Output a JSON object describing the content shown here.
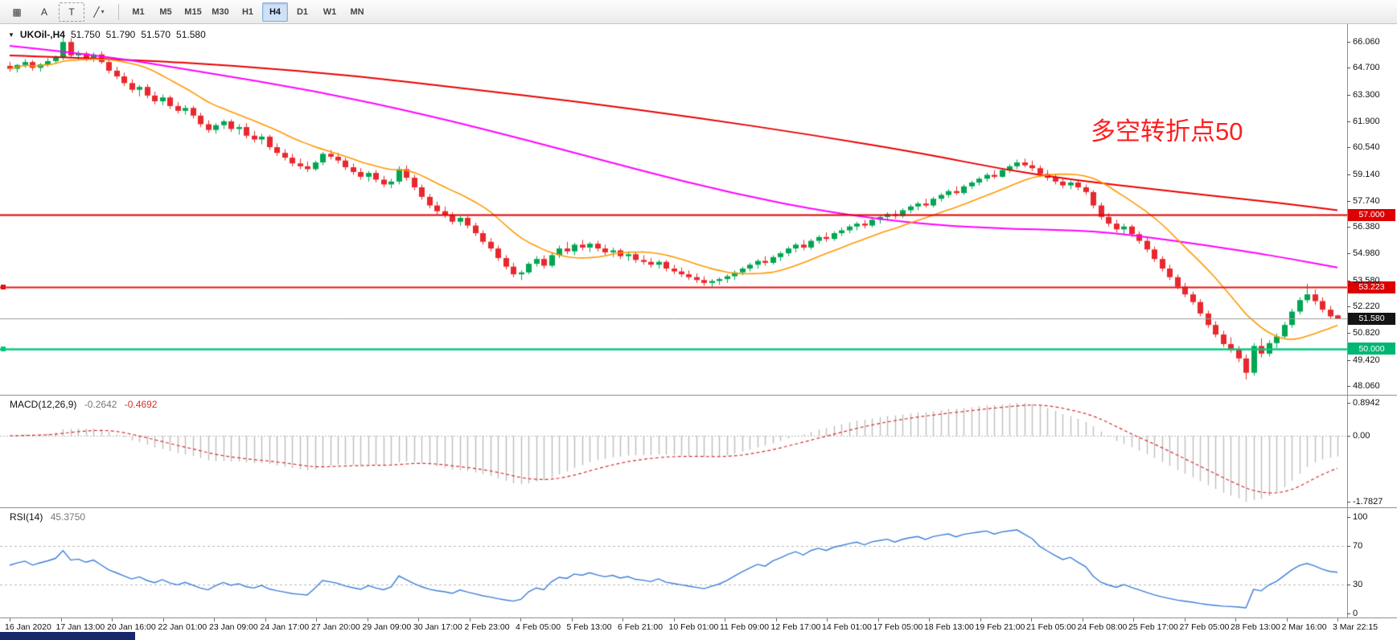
{
  "toolbar": {
    "tools": [
      {
        "name": "grid-icon",
        "glyph": "▦"
      },
      {
        "name": "text-tool-button",
        "glyph": "A"
      },
      {
        "name": "text-box-tool-button",
        "glyph": "T"
      },
      {
        "name": "trendline-tool-button",
        "glyph": "╱",
        "caret": "▾"
      }
    ],
    "timeframes": [
      "M1",
      "M5",
      "M15",
      "M30",
      "H1",
      "H4",
      "D1",
      "W1",
      "MN"
    ],
    "active_timeframe": "H4"
  },
  "symbol_header": {
    "toggle_glyph": "▼",
    "symbol": "UKOil-,H4",
    "open": "51.750",
    "high": "51.790",
    "low": "51.570",
    "close": "51.580"
  },
  "annotation": {
    "text": "多空转折点50",
    "color": "#ff1e1e"
  },
  "chart_data": {
    "type": "candlestick",
    "symbol": "UKOil-",
    "timeframe": "H4",
    "colors": {
      "up": "#00a651",
      "down": "#e8282d",
      "background": "#ffffff"
    },
    "price_axis": {
      "ticks": [
        "66.060",
        "64.700",
        "63.300",
        "61.900",
        "60.540",
        "59.140",
        "57.740",
        "56.380",
        "54.980",
        "53.580",
        "52.220",
        "50.820",
        "49.420",
        "48.060"
      ]
    },
    "candles": [
      [
        64.8,
        65.0,
        64.5,
        64.65
      ],
      [
        64.65,
        64.9,
        64.45,
        64.85
      ],
      [
        64.85,
        65.15,
        64.7,
        65.0
      ],
      [
        65.0,
        65.1,
        64.55,
        64.7
      ],
      [
        64.7,
        64.95,
        64.5,
        64.88
      ],
      [
        64.88,
        65.2,
        64.75,
        65.05
      ],
      [
        65.05,
        65.35,
        64.9,
        65.25
      ],
      [
        65.25,
        66.3,
        65.1,
        66.05
      ],
      [
        66.05,
        66.25,
        65.2,
        65.35
      ],
      [
        65.35,
        65.6,
        65.1,
        65.45
      ],
      [
        65.45,
        65.55,
        65.05,
        65.2
      ],
      [
        65.2,
        65.5,
        65.0,
        65.4
      ],
      [
        65.4,
        65.55,
        64.9,
        65.0
      ],
      [
        65.0,
        65.15,
        64.4,
        64.55
      ],
      [
        64.55,
        64.75,
        64.1,
        64.25
      ],
      [
        64.25,
        64.45,
        63.75,
        63.9
      ],
      [
        63.9,
        64.1,
        63.4,
        63.55
      ],
      [
        63.55,
        63.8,
        63.2,
        63.7
      ],
      [
        63.7,
        63.85,
        63.1,
        63.25
      ],
      [
        63.25,
        63.45,
        62.8,
        62.95
      ],
      [
        62.95,
        63.3,
        62.75,
        63.15
      ],
      [
        63.15,
        63.25,
        62.55,
        62.7
      ],
      [
        62.7,
        62.9,
        62.3,
        62.45
      ],
      [
        62.45,
        62.75,
        62.25,
        62.6
      ],
      [
        62.6,
        62.7,
        62.05,
        62.2
      ],
      [
        62.2,
        62.35,
        61.6,
        61.75
      ],
      [
        61.75,
        61.95,
        61.3,
        61.45
      ],
      [
        61.45,
        61.8,
        61.25,
        61.7
      ],
      [
        61.7,
        62.0,
        61.5,
        61.9
      ],
      [
        61.9,
        62.0,
        61.35,
        61.5
      ],
      [
        61.5,
        61.75,
        61.2,
        61.6
      ],
      [
        61.6,
        61.8,
        61.0,
        61.15
      ],
      [
        61.15,
        61.4,
        60.8,
        60.95
      ],
      [
        60.95,
        61.25,
        60.7,
        61.1
      ],
      [
        61.1,
        61.2,
        60.4,
        60.55
      ],
      [
        60.55,
        60.75,
        60.1,
        60.25
      ],
      [
        60.25,
        60.45,
        59.85,
        60.0
      ],
      [
        60.0,
        60.2,
        59.55,
        59.7
      ],
      [
        59.7,
        59.95,
        59.4,
        59.55
      ],
      [
        59.55,
        59.8,
        59.25,
        59.4
      ],
      [
        59.4,
        59.85,
        59.3,
        59.75
      ],
      [
        59.75,
        60.3,
        59.6,
        60.2
      ],
      [
        60.2,
        60.4,
        59.9,
        60.05
      ],
      [
        60.05,
        60.25,
        59.7,
        59.85
      ],
      [
        59.85,
        60.0,
        59.35,
        59.5
      ],
      [
        59.5,
        59.7,
        59.1,
        59.25
      ],
      [
        59.25,
        59.45,
        58.85,
        59.0
      ],
      [
        59.0,
        59.3,
        58.75,
        59.2
      ],
      [
        59.2,
        59.35,
        58.7,
        58.85
      ],
      [
        58.85,
        59.05,
        58.45,
        58.6
      ],
      [
        58.6,
        58.9,
        58.4,
        58.75
      ],
      [
        58.75,
        59.55,
        58.6,
        59.4
      ],
      [
        59.4,
        59.6,
        58.8,
        58.95
      ],
      [
        58.95,
        59.1,
        58.3,
        58.45
      ],
      [
        58.45,
        58.6,
        57.8,
        57.95
      ],
      [
        57.95,
        58.1,
        57.35,
        57.5
      ],
      [
        57.5,
        57.7,
        57.05,
        57.2
      ],
      [
        57.2,
        57.45,
        56.85,
        57.0
      ],
      [
        57.0,
        57.15,
        56.5,
        56.65
      ],
      [
        56.65,
        56.95,
        56.45,
        56.85
      ],
      [
        56.85,
        56.95,
        56.3,
        56.45
      ],
      [
        56.45,
        56.6,
        55.9,
        56.05
      ],
      [
        56.05,
        56.2,
        55.45,
        55.6
      ],
      [
        55.6,
        55.8,
        55.1,
        55.25
      ],
      [
        55.25,
        55.4,
        54.6,
        54.75
      ],
      [
        54.75,
        54.9,
        54.15,
        54.3
      ],
      [
        54.3,
        54.5,
        53.75,
        53.9
      ],
      [
        53.9,
        54.1,
        53.6,
        54.0
      ],
      [
        54.0,
        54.55,
        53.9,
        54.45
      ],
      [
        54.45,
        54.85,
        54.3,
        54.7
      ],
      [
        54.7,
        54.9,
        54.2,
        54.35
      ],
      [
        54.35,
        55.0,
        54.25,
        54.9
      ],
      [
        54.9,
        55.4,
        54.75,
        55.25
      ],
      [
        55.25,
        55.6,
        54.95,
        55.1
      ],
      [
        55.1,
        55.55,
        54.9,
        55.45
      ],
      [
        55.45,
        55.7,
        55.15,
        55.3
      ],
      [
        55.3,
        55.6,
        55.05,
        55.5
      ],
      [
        55.5,
        55.65,
        55.1,
        55.25
      ],
      [
        55.25,
        55.45,
        54.9,
        55.05
      ],
      [
        55.05,
        55.3,
        54.8,
        55.15
      ],
      [
        55.15,
        55.25,
        54.7,
        54.85
      ],
      [
        54.85,
        55.1,
        54.6,
        54.95
      ],
      [
        54.95,
        55.05,
        54.5,
        54.65
      ],
      [
        54.65,
        54.9,
        54.4,
        54.55
      ],
      [
        54.55,
        54.75,
        54.25,
        54.4
      ],
      [
        54.4,
        54.65,
        54.2,
        54.55
      ],
      [
        54.55,
        54.65,
        54.05,
        54.2
      ],
      [
        54.2,
        54.4,
        53.9,
        54.05
      ],
      [
        54.05,
        54.25,
        53.75,
        53.9
      ],
      [
        53.9,
        54.1,
        53.6,
        53.75
      ],
      [
        53.75,
        53.95,
        53.45,
        53.6
      ],
      [
        53.6,
        53.8,
        53.3,
        53.45
      ],
      [
        53.45,
        53.65,
        53.25,
        53.55
      ],
      [
        53.55,
        53.75,
        53.35,
        53.65
      ],
      [
        53.65,
        53.9,
        53.45,
        53.8
      ],
      [
        53.8,
        54.1,
        53.6,
        54.0
      ],
      [
        54.0,
        54.3,
        53.85,
        54.2
      ],
      [
        54.2,
        54.5,
        54.05,
        54.4
      ],
      [
        54.4,
        54.7,
        54.2,
        54.6
      ],
      [
        54.6,
        54.85,
        54.35,
        54.5
      ],
      [
        54.5,
        54.9,
        54.4,
        54.8
      ],
      [
        54.8,
        55.1,
        54.6,
        55.0
      ],
      [
        55.0,
        55.35,
        54.85,
        55.25
      ],
      [
        55.25,
        55.55,
        55.05,
        55.45
      ],
      [
        55.45,
        55.7,
        55.15,
        55.3
      ],
      [
        55.3,
        55.75,
        55.2,
        55.65
      ],
      [
        55.65,
        55.95,
        55.5,
        55.85
      ],
      [
        55.85,
        56.1,
        55.6,
        55.75
      ],
      [
        55.75,
        56.15,
        55.65,
        56.05
      ],
      [
        56.05,
        56.35,
        55.9,
        56.2
      ],
      [
        56.2,
        56.5,
        56.05,
        56.4
      ],
      [
        56.4,
        56.65,
        56.2,
        56.55
      ],
      [
        56.55,
        56.75,
        56.3,
        56.45
      ],
      [
        56.45,
        56.85,
        56.35,
        56.75
      ],
      [
        56.75,
        57.0,
        56.55,
        56.9
      ],
      [
        56.9,
        57.15,
        56.7,
        57.05
      ],
      [
        57.05,
        57.25,
        56.8,
        56.95
      ],
      [
        56.95,
        57.35,
        56.85,
        57.25
      ],
      [
        57.25,
        57.55,
        57.1,
        57.45
      ],
      [
        57.45,
        57.7,
        57.25,
        57.6
      ],
      [
        57.6,
        57.85,
        57.4,
        57.5
      ],
      [
        57.5,
        57.95,
        57.4,
        57.85
      ],
      [
        57.85,
        58.15,
        57.7,
        58.05
      ],
      [
        58.05,
        58.35,
        57.9,
        58.25
      ],
      [
        58.25,
        58.5,
        58.05,
        58.15
      ],
      [
        58.15,
        58.6,
        58.05,
        58.5
      ],
      [
        58.5,
        58.8,
        58.35,
        58.7
      ],
      [
        58.7,
        59.0,
        58.55,
        58.9
      ],
      [
        58.9,
        59.2,
        58.75,
        59.1
      ],
      [
        59.1,
        59.35,
        58.9,
        59.0
      ],
      [
        59.0,
        59.45,
        58.95,
        59.35
      ],
      [
        59.35,
        59.65,
        59.2,
        59.55
      ],
      [
        59.55,
        59.9,
        59.4,
        59.75
      ],
      [
        59.75,
        59.95,
        59.5,
        59.6
      ],
      [
        59.6,
        59.85,
        59.3,
        59.45
      ],
      [
        59.45,
        59.6,
        59.0,
        59.15
      ],
      [
        59.15,
        59.35,
        58.8,
        58.95
      ],
      [
        58.95,
        59.15,
        58.6,
        58.75
      ],
      [
        58.75,
        58.95,
        58.4,
        58.55
      ],
      [
        58.55,
        58.8,
        58.35,
        58.7
      ],
      [
        58.7,
        58.85,
        58.3,
        58.45
      ],
      [
        58.45,
        58.6,
        58.05,
        58.2
      ],
      [
        58.2,
        58.3,
        57.35,
        57.5
      ],
      [
        57.5,
        57.65,
        56.75,
        56.9
      ],
      [
        56.9,
        57.1,
        56.4,
        56.55
      ],
      [
        56.55,
        56.75,
        56.1,
        56.25
      ],
      [
        56.25,
        56.55,
        56.0,
        56.4
      ],
      [
        56.4,
        56.5,
        55.85,
        56.0
      ],
      [
        56.0,
        56.15,
        55.5,
        55.65
      ],
      [
        55.65,
        55.8,
        55.05,
        55.2
      ],
      [
        55.2,
        55.35,
        54.55,
        54.7
      ],
      [
        54.7,
        54.85,
        54.05,
        54.2
      ],
      [
        54.2,
        54.4,
        53.6,
        53.75
      ],
      [
        53.75,
        53.9,
        53.1,
        53.25
      ],
      [
        53.25,
        53.45,
        52.7,
        52.85
      ],
      [
        52.85,
        53.0,
        52.3,
        52.45
      ],
      [
        52.45,
        52.6,
        51.7,
        51.85
      ],
      [
        51.85,
        52.0,
        51.1,
        51.25
      ],
      [
        51.25,
        51.45,
        50.6,
        50.75
      ],
      [
        50.75,
        50.95,
        50.1,
        50.25
      ],
      [
        50.25,
        50.6,
        49.8,
        49.95
      ],
      [
        49.95,
        50.15,
        49.3,
        49.5
      ],
      [
        49.5,
        49.7,
        48.4,
        48.75
      ],
      [
        48.75,
        50.3,
        48.6,
        50.15
      ],
      [
        50.15,
        50.55,
        49.55,
        49.75
      ],
      [
        49.75,
        50.45,
        49.6,
        50.3
      ],
      [
        50.3,
        50.8,
        50.05,
        50.65
      ],
      [
        50.65,
        51.4,
        50.5,
        51.25
      ],
      [
        51.25,
        52.1,
        51.1,
        51.95
      ],
      [
        51.95,
        52.7,
        51.8,
        52.55
      ],
      [
        52.55,
        53.4,
        52.4,
        52.85
      ],
      [
        52.85,
        53.1,
        52.3,
        52.5
      ],
      [
        52.5,
        52.7,
        51.9,
        52.05
      ],
      [
        52.05,
        52.25,
        51.55,
        51.7
      ],
      [
        51.75,
        51.79,
        51.57,
        51.58
      ]
    ],
    "overlays": {
      "ma_fast": {
        "type": "sma",
        "period": 13,
        "color": "#ff9800"
      },
      "ma_mid": {
        "color": "#ff00ff",
        "points": [
          [
            0,
            65.85
          ],
          [
            12,
            65.35
          ],
          [
            25,
            64.5
          ],
          [
            40,
            63.5
          ],
          [
            55,
            62.2
          ],
          [
            68,
            60.9
          ],
          [
            82,
            59.4
          ],
          [
            95,
            58.1
          ],
          [
            108,
            57.1
          ],
          [
            120,
            56.5
          ],
          [
            132,
            56.25
          ],
          [
            142,
            56.2
          ],
          [
            152,
            55.7
          ],
          [
            162,
            55.1
          ],
          [
            168,
            54.7
          ],
          [
            174,
            54.25
          ]
        ]
      },
      "ma_slow": {
        "color": "#e80000",
        "points": [
          [
            0,
            65.35
          ],
          [
            15,
            65.15
          ],
          [
            30,
            64.8
          ],
          [
            45,
            64.3
          ],
          [
            60,
            63.6
          ],
          [
            75,
            62.9
          ],
          [
            90,
            62.1
          ],
          [
            105,
            61.2
          ],
          [
            120,
            60.2
          ],
          [
            130,
            59.4
          ],
          [
            140,
            58.8
          ],
          [
            150,
            58.35
          ],
          [
            160,
            57.9
          ],
          [
            167,
            57.6
          ],
          [
            174,
            57.25
          ]
        ]
      }
    },
    "hlines": [
      {
        "value": 57.0,
        "label": "57.000",
        "line_color": "#dd0000",
        "badge_bg": "#dd0000",
        "width": 2,
        "handle": false
      },
      {
        "value": 53.223,
        "label": "53.223",
        "line_color": "#ee1111",
        "badge_bg": "#dd0000",
        "width": 2,
        "handle": true
      },
      {
        "value": 51.58,
        "label": "51.580",
        "line_color": "#9e9e9e",
        "badge_bg": "#141414",
        "width": 1,
        "handle": false
      },
      {
        "value": 50.0,
        "label": "50.000",
        "line_color": "#00c97e",
        "badge_bg": "#00b673",
        "width": 2.5,
        "handle": true
      }
    ],
    "macd": {
      "label": "MACD(12,26,9)",
      "value_main": "-0.2642",
      "value_signal": "-0.4692",
      "fast": 12,
      "slow": 26,
      "signal": 9,
      "scale_ticks": [
        "0.8942",
        "0.00",
        "-1.7827"
      ],
      "histogram_color": "#bdbdbd",
      "signal_color": "#d23030"
    },
    "rsi": {
      "label": "RSI(14)",
      "value": "45.3750",
      "period": 14,
      "scale_ticks": [
        "100",
        "70",
        "30",
        "0"
      ],
      "levels": [
        70,
        30
      ],
      "line_color": "#3c7dd9"
    },
    "time_axis": [
      "16 Jan 2020",
      "17 Jan 13:00",
      "20 Jan 16:00",
      "22 Jan 01:00",
      "23 Jan 09:00",
      "24 Jan 17:00",
      "27 Jan 20:00",
      "29 Jan 09:00",
      "30 Jan 17:00",
      "2 Feb 23:00",
      "4 Feb 05:00",
      "5 Feb 13:00",
      "6 Feb 21:00",
      "10 Feb 01:00",
      "11 Feb 09:00",
      "12 Feb 17:00",
      "14 Feb 01:00",
      "17 Feb 05:00",
      "18 Feb 13:00",
      "19 Feb 21:00",
      "21 Feb 05:00",
      "24 Feb 08:00",
      "25 Feb 17:00",
      "27 Feb 05:00",
      "28 Feb 13:00",
      "2 Mar 16:00",
      "3 Mar 22:15"
    ]
  }
}
